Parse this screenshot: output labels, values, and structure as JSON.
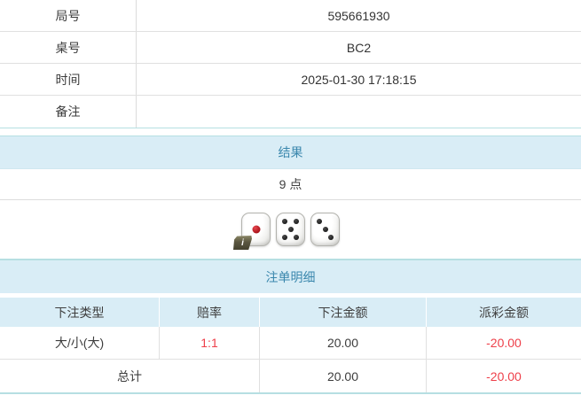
{
  "info": {
    "rows": [
      {
        "label": "局号",
        "value": "595661930"
      },
      {
        "label": "桌号",
        "value": "BC2"
      },
      {
        "label": "时间",
        "value": "2025-01-30 17:18:15"
      },
      {
        "label": "备注",
        "value": ""
      }
    ]
  },
  "result": {
    "title": "结果",
    "points": "9 点",
    "dice": [
      {
        "value": 1,
        "color": "red",
        "badge": "i"
      },
      {
        "value": 5,
        "color": "black"
      },
      {
        "value": 3,
        "color": "black"
      }
    ]
  },
  "bet": {
    "title": "注单明细",
    "columns": [
      "下注类型",
      "赔率",
      "下注金额",
      "派彩金额"
    ],
    "rows": [
      {
        "type": "大/小(大)",
        "odds": "1:1",
        "amount": "20.00",
        "payout": "-20.00"
      }
    ],
    "total": {
      "label": "总计",
      "amount": "20.00",
      "payout": "-20.00"
    }
  },
  "colors": {
    "band_bg": "#d9edf6",
    "band_text": "#3a87ad",
    "accent_border": "#b6dfe2",
    "negative_red": "#ee3f49",
    "red_dot": "#c01f28",
    "black_dot": "#2b2b2b"
  }
}
